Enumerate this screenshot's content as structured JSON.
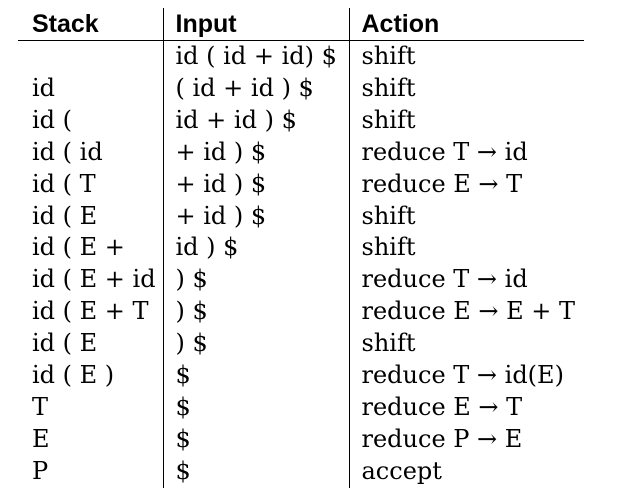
{
  "table": {
    "headers": [
      "Stack",
      "Input",
      "Action"
    ],
    "rows": [
      {
        "stack": "",
        "input": "id ( id + id) $",
        "action": "shift"
      },
      {
        "stack": "id",
        "input": "( id + id ) $",
        "action": "shift"
      },
      {
        "stack": "id (",
        "input": "id + id ) $",
        "action": "shift"
      },
      {
        "stack": "id ( id",
        "input": "+ id ) $",
        "action": "reduce T → id"
      },
      {
        "stack": "id ( T",
        "input": "+ id ) $",
        "action": "reduce E → T"
      },
      {
        "stack": "id ( E",
        "input": "+ id ) $",
        "action": "shift"
      },
      {
        "stack": "id ( E +",
        "input": "id ) $",
        "action": "shift"
      },
      {
        "stack": "id ( E + id",
        "input": ") $",
        "action": "reduce T → id"
      },
      {
        "stack": "id ( E + T",
        "input": ") $",
        "action": "reduce E → E + T"
      },
      {
        "stack": "id ( E",
        "input": ") $",
        "action": "shift"
      },
      {
        "stack": "id ( E )",
        "input": "$",
        "action": "reduce T → id(E)"
      },
      {
        "stack": "T",
        "input": "$",
        "action": "reduce E → T"
      },
      {
        "stack": "E",
        "input": "$",
        "action": "reduce P → E"
      },
      {
        "stack": "P",
        "input": "$",
        "action": "accept"
      }
    ]
  }
}
